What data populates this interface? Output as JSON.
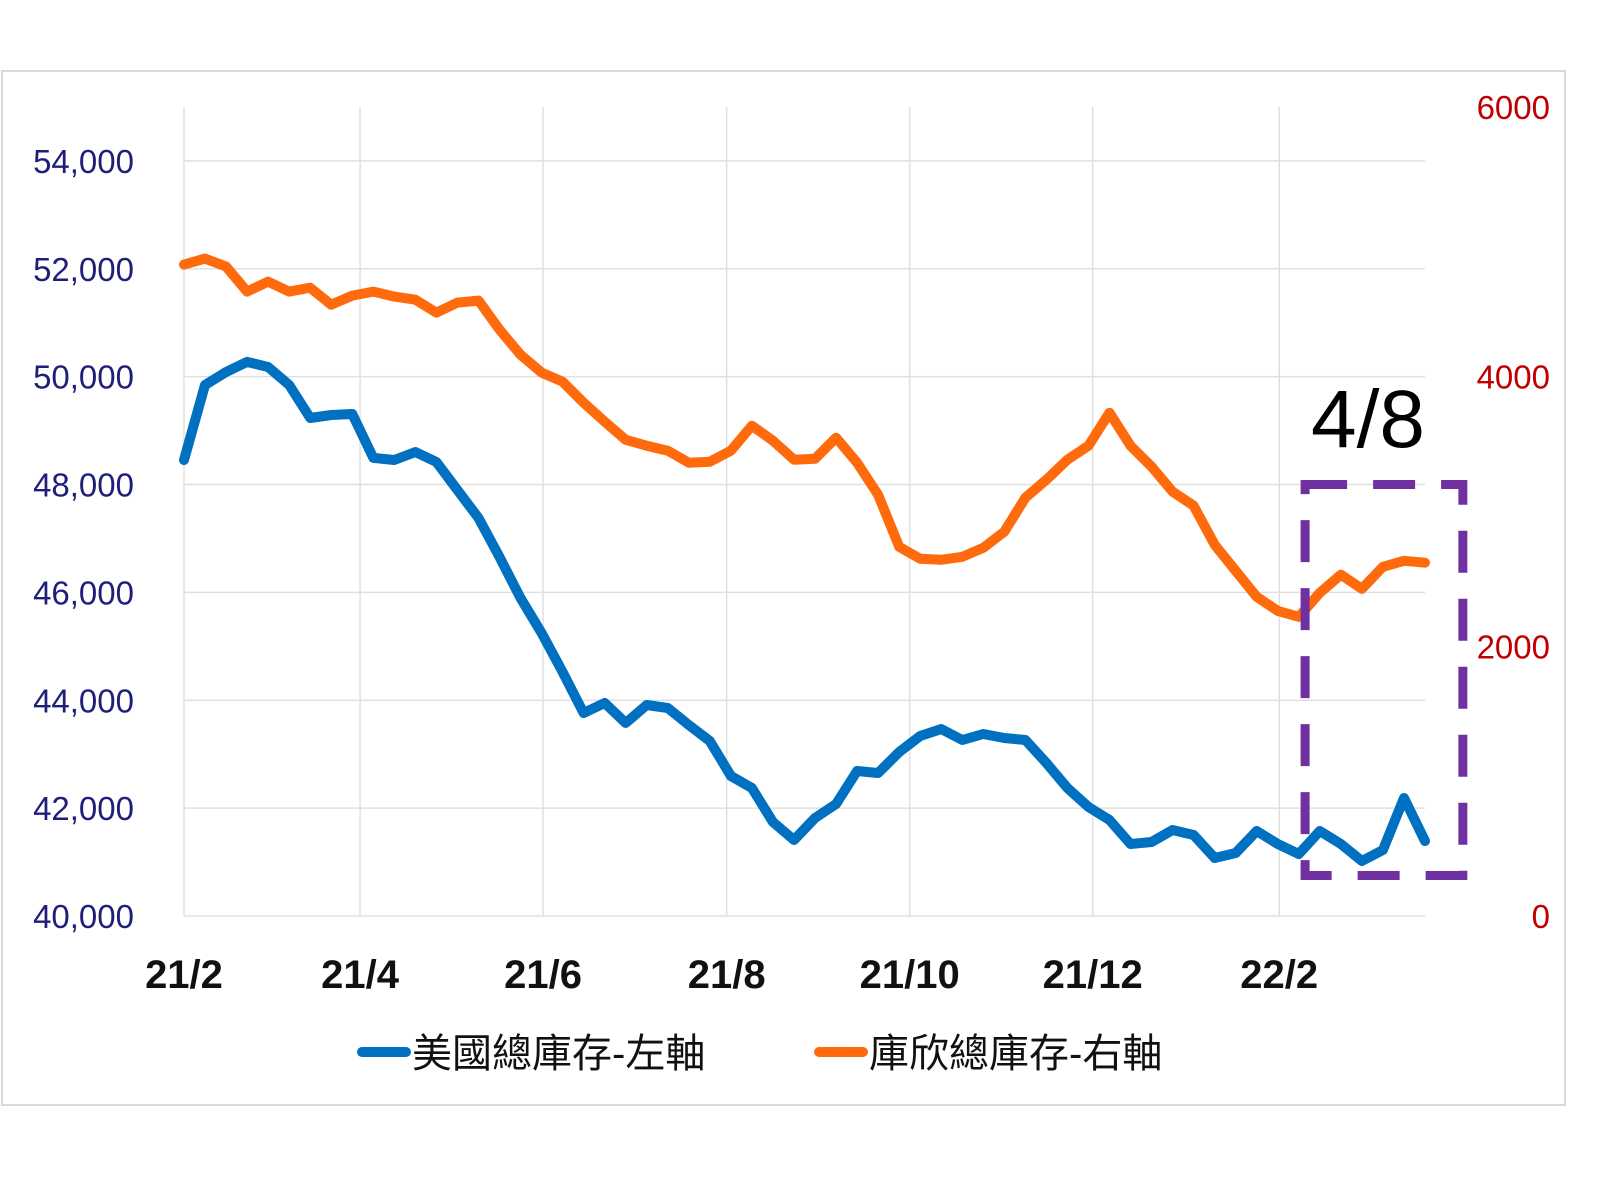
{
  "chart_data": {
    "type": "line",
    "title": "",
    "x_unit": "week index (weekly data, Feb 2021 – Apr 2022)",
    "x": [
      0,
      1,
      2,
      3,
      4,
      5,
      6,
      7,
      8,
      9,
      10,
      11,
      12,
      13,
      14,
      15,
      16,
      17,
      18,
      19,
      20,
      21,
      22,
      23,
      24,
      25,
      26,
      27,
      28,
      29,
      30,
      31,
      32,
      33,
      34,
      35,
      36,
      37,
      38,
      39,
      40,
      41,
      42,
      43,
      44,
      45,
      46,
      47,
      48,
      49,
      50,
      51,
      52,
      53,
      54,
      55,
      56,
      57,
      58,
      59
    ],
    "xlim": [
      0,
      59
    ],
    "x_ticks": [
      {
        "label": "21/2",
        "at": 0
      },
      {
        "label": "21/4",
        "at": 8.37
      },
      {
        "label": "21/6",
        "at": 17.07
      },
      {
        "label": "21/8",
        "at": 25.8
      },
      {
        "label": "21/10",
        "at": 34.5
      },
      {
        "label": "21/12",
        "at": 43.2
      },
      {
        "label": "22/2",
        "at": 52.07
      }
    ],
    "y_left": {
      "ylim": [
        40000,
        55000
      ],
      "ticks": [
        40000,
        42000,
        44000,
        46000,
        48000,
        50000,
        52000,
        54000
      ],
      "tick_labels": [
        "40,000",
        "42,000",
        "44,000",
        "46,000",
        "48,000",
        "50,000",
        "52,000",
        "54,000"
      ]
    },
    "y_right": {
      "ylim": [
        0,
        6000
      ],
      "ticks": [
        0,
        2000,
        4000,
        6000
      ],
      "tick_labels": [
        "0",
        "2000",
        "4000",
        "6000"
      ]
    },
    "grid": true,
    "legend_position": "bottom",
    "series": [
      {
        "name": "美國總庫存-左軸",
        "axis": "left",
        "color": "#0070C0",
        "values": [
          48455,
          49846,
          50087,
          50273,
          50180,
          49846,
          49234,
          49290,
          49308,
          48493,
          48455,
          48604,
          48418,
          47899,
          47380,
          46657,
          45897,
          45248,
          44524,
          43764,
          43950,
          43579,
          43913,
          43857,
          43542,
          43245,
          42596,
          42373,
          41743,
          41409,
          41817,
          42077,
          42689,
          42651,
          43041,
          43337,
          43467,
          43263,
          43374,
          43300,
          43263,
          42837,
          42373,
          42021,
          41780,
          41335,
          41372,
          41595,
          41502,
          41075,
          41168,
          41576,
          41335,
          41150,
          41576,
          41335,
          41020,
          41224,
          42188,
          41391
        ]
      },
      {
        "name": "庫欣總庫存-右軸",
        "axis": "right",
        "color": "#FF6A0D",
        "values": [
          4831,
          4876,
          4816,
          4631,
          4705,
          4631,
          4660,
          4534,
          4601,
          4631,
          4594,
          4571,
          4475,
          4549,
          4564,
          4349,
          4163,
          4030,
          3963,
          3807,
          3666,
          3532,
          3488,
          3451,
          3362,
          3369,
          3451,
          3636,
          3525,
          3384,
          3391,
          3547,
          3362,
          3124,
          2738,
          2649,
          2642,
          2664,
          2731,
          2850,
          3102,
          3236,
          3384,
          3488,
          3733,
          3488,
          3332,
          3147,
          3043,
          2753,
          2560,
          2367,
          2263,
          2219,
          2397,
          2531,
          2427,
          2590,
          2634,
          2620
        ]
      }
    ],
    "annotations": [
      {
        "text": "4/8",
        "type": "dashed-box",
        "color": "#7030A0",
        "x_range": [
          53.3,
          60.8
        ],
        "y_right_range": [
          300,
          3200
        ]
      }
    ]
  }
}
